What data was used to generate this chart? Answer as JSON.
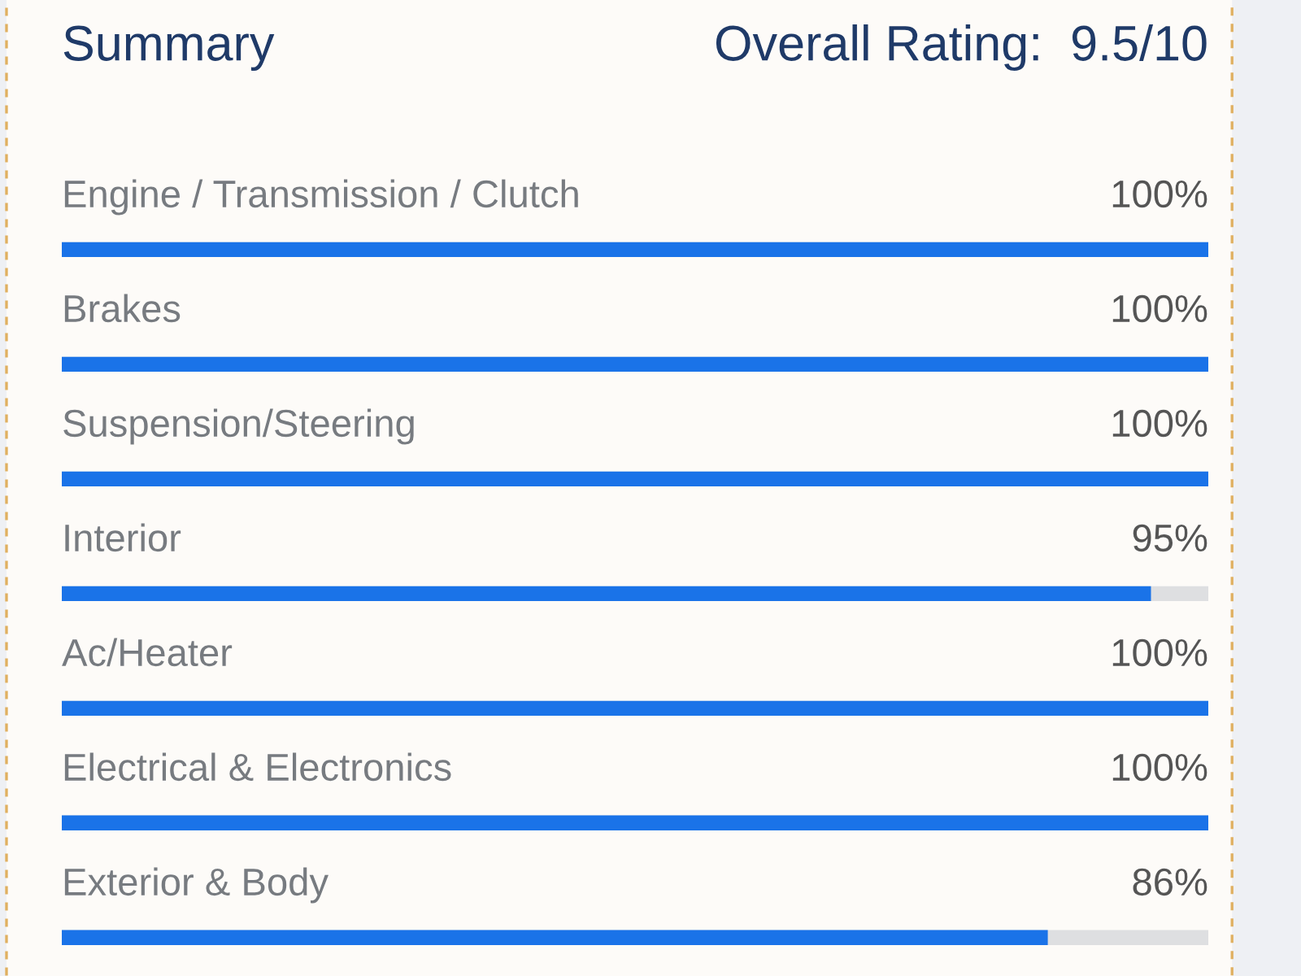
{
  "chart_data": {
    "type": "bar",
    "orientation": "horizontal",
    "title": "Summary",
    "subtitle": "Overall Rating:  9.5/10",
    "categories": [
      "Engine / Transmission / Clutch",
      "Brakes",
      "Suspension/Steering",
      "Interior",
      "Ac/Heater",
      "Electrical & Electronics",
      "Exterior & Body"
    ],
    "values": [
      100,
      100,
      100,
      95,
      100,
      100,
      86
    ],
    "value_labels": [
      "100%",
      "100%",
      "100%",
      "95%",
      "100%",
      "100%",
      "86%"
    ],
    "color": "#1a73e8",
    "xlim": [
      0,
      100
    ]
  }
}
